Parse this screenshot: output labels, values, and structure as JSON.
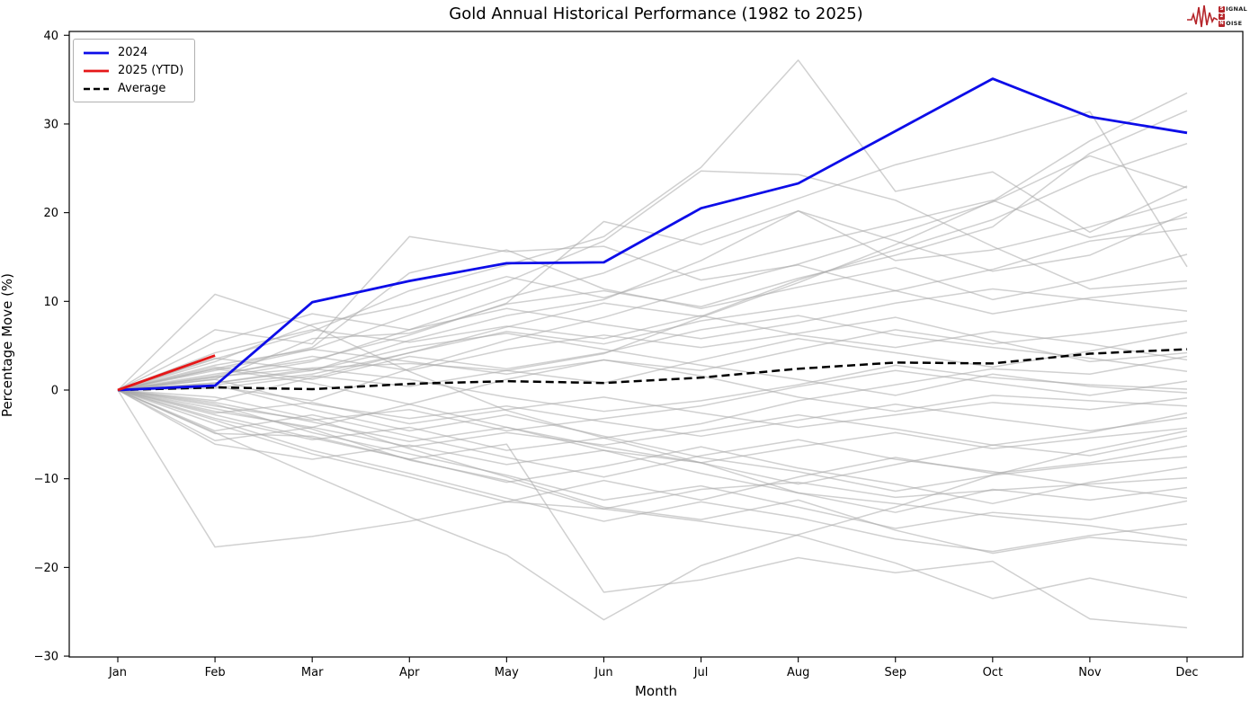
{
  "logo": {
    "name": "Signal 2 Noise",
    "color": "#b5252a",
    "line1_boxed": "S",
    "line1_rest": "IGNAL",
    "line2_boxed": "2",
    "line2_rest": "",
    "line3_boxed": "N",
    "line3_rest": "OISE"
  },
  "chart_data": {
    "type": "line",
    "title": "Gold Annual Historical Performance (1982 to 2025)",
    "xlabel": "Month",
    "ylabel": "Percentage Move (%)",
    "categories": [
      "Jan",
      "Feb",
      "Mar",
      "Apr",
      "May",
      "Jun",
      "Jul",
      "Aug",
      "Sep",
      "Oct",
      "Nov",
      "Dec"
    ],
    "ylim": [
      -30,
      40
    ],
    "yticks": [
      40,
      30,
      20,
      10,
      0,
      -10,
      -20,
      -30
    ],
    "ytick_labels": [
      "40",
      "30",
      "20",
      "10",
      "0",
      "−10",
      "−20",
      "−30"
    ],
    "grid": false,
    "legend_position": "upper left",
    "axis_color": "#000000",
    "series": [
      {
        "name": "2024",
        "color": "#0d0de8",
        "style": "solid",
        "width": 2.8,
        "values": [
          0,
          0.5,
          9.9,
          12.3,
          14.3,
          14.4,
          20.5,
          23.3,
          29.2,
          35.1,
          30.8,
          29.0
        ]
      },
      {
        "name": "2025 (YTD)",
        "color": "#e51718",
        "style": "solid",
        "width": 2.8,
        "values": [
          0,
          3.9
        ]
      },
      {
        "name": "Average",
        "color": "#000000",
        "style": "dashed",
        "width": 2.5,
        "values": [
          0,
          0.3,
          0.1,
          0.7,
          1.0,
          0.8,
          1.4,
          2.4,
          3.1,
          3.0,
          4.1,
          4.6
        ]
      }
    ],
    "background_series": {
      "label": "historical years 1982-2023 (unlabeled gray lines)",
      "color": "#a9a9a9",
      "opacity": 0.55,
      "width": 1.5,
      "values": [
        [
          0,
          3.5,
          6.6,
          11.2,
          14.1,
          17.3,
          25.1,
          37.2,
          22.4,
          24.6,
          17.8,
          23.0
        ],
        [
          0,
          1.5,
          2.5,
          3.0,
          2.2,
          4.1,
          8.2,
          12.1,
          16.4,
          21.3,
          28.1,
          33.5
        ],
        [
          0,
          1.2,
          5.8,
          6.4,
          9.7,
          11.2,
          9.4,
          12.6,
          15.2,
          18.4,
          26.7,
          31.5
        ],
        [
          0,
          -1.2,
          1.4,
          4.2,
          7.1,
          9.8,
          8.3,
          12.4,
          15.8,
          19.2,
          24.1,
          27.8
        ],
        [
          0,
          10.8,
          7.2,
          2.1,
          -2.3,
          -5.4,
          -8.2,
          -11.6,
          -12.8,
          -14.2,
          -15.3,
          -16.9
        ],
        [
          0,
          -17.7,
          -16.5,
          -14.8,
          -12.6,
          -13.4,
          -11.2,
          -10.4,
          -12.1,
          -11.3,
          -10.6,
          -9.9
        ],
        [
          0,
          -4.8,
          -9.6,
          -14.3,
          -18.6,
          -25.9,
          -19.8,
          -16.3,
          -13.2,
          -9.6,
          -6.8,
          -4.6
        ],
        [
          0,
          -4.9,
          -5.2,
          -7.8,
          -6.1,
          -22.8,
          -21.4,
          -18.9,
          -20.6,
          -19.3,
          -25.8,
          -26.8
        ],
        [
          0,
          -2.1,
          -4.4,
          -7.9,
          -10.2,
          -13.4,
          -14.8,
          -16.4,
          -19.5,
          -23.5,
          -21.2,
          -23.4
        ],
        [
          0,
          6.8,
          5.2,
          17.3,
          15.6,
          16.2,
          12.4,
          14.1,
          11.2,
          13.6,
          16.8,
          18.2
        ],
        [
          0,
          2.4,
          4.8,
          13.2,
          15.8,
          11.4,
          9.2,
          11.6,
          13.8,
          10.2,
          12.4,
          15.3
        ],
        [
          0,
          2.2,
          4.6,
          8.4,
          12.2,
          16.8,
          24.7,
          24.3,
          21.4,
          16.2,
          11.4,
          12.3
        ],
        [
          0,
          1.8,
          3.4,
          6.2,
          9.8,
          19.0,
          16.4,
          20.2,
          14.6,
          15.8,
          18.4,
          21.5
        ],
        [
          0,
          0.8,
          2.2,
          5.6,
          8.4,
          10.2,
          14.6,
          20.2,
          16.8,
          13.4,
          15.2,
          20.0
        ],
        [
          0,
          1.4,
          3.2,
          6.8,
          10.4,
          13.2,
          17.8,
          21.6,
          25.4,
          28.2,
          31.4,
          13.9
        ],
        [
          0,
          0.6,
          1.8,
          4.2,
          6.6,
          5.2,
          7.8,
          9.4,
          11.2,
          8.6,
          10.4,
          11.5
        ],
        [
          0,
          0.4,
          -1.2,
          2.4,
          5.6,
          8.2,
          11.4,
          14.2,
          17.6,
          21.2,
          26.4,
          22.8
        ],
        [
          0,
          3.2,
          7.4,
          9.6,
          12.8,
          10.4,
          13.6,
          16.2,
          18.8,
          21.4,
          17.2,
          19.5
        ],
        [
          0,
          -2.4,
          -4.2,
          -1.6,
          1.2,
          3.4,
          2.2,
          4.6,
          6.8,
          5.2,
          6.4,
          7.8
        ],
        [
          0,
          1.6,
          3.8,
          2.2,
          4.6,
          6.2,
          4.8,
          6.4,
          8.2,
          5.6,
          3.2,
          4.2
        ],
        [
          0,
          -3.2,
          -5.6,
          -4.2,
          -6.8,
          -5.4,
          -3.8,
          -1.2,
          0.6,
          2.4,
          1.8,
          3.8
        ],
        [
          0,
          4.2,
          6.8,
          5.4,
          7.2,
          5.8,
          8.4,
          6.2,
          4.8,
          6.6,
          5.2,
          3.4
        ],
        [
          0,
          2.6,
          1.2,
          3.8,
          2.4,
          4.2,
          6.8,
          8.4,
          6.2,
          4.8,
          3.6,
          2.1
        ],
        [
          0,
          -1.8,
          -3.4,
          -2.2,
          -4.6,
          -3.2,
          -1.8,
          0.4,
          2.2,
          0.8,
          -0.6,
          1.0
        ],
        [
          0,
          0.8,
          2.4,
          1.2,
          -0.8,
          -2.4,
          -1.2,
          0.6,
          2.8,
          1.4,
          0.6,
          0.1
        ],
        [
          0,
          -2.6,
          -1.4,
          -3.8,
          -2.2,
          -0.8,
          -2.6,
          -4.2,
          -2.8,
          -1.4,
          -2.2,
          -0.9
        ],
        [
          0,
          2.8,
          4.6,
          3.2,
          1.8,
          3.4,
          1.6,
          -0.8,
          -2.4,
          -0.6,
          -1.2,
          -1.8
        ],
        [
          0,
          -5.7,
          -4.2,
          -6.4,
          -4.8,
          -6.2,
          -4.6,
          -2.8,
          -4.4,
          -6.2,
          -4.8,
          -2.6
        ],
        [
          0,
          1.2,
          -1.6,
          -3.2,
          -1.8,
          -3.6,
          -5.2,
          -3.4,
          -1.6,
          -3.2,
          -4.6,
          -3.1
        ],
        [
          0,
          -6.1,
          -7.8,
          -6.2,
          -8.4,
          -6.8,
          -8.2,
          -6.4,
          -4.8,
          -6.6,
          -5.4,
          -4.3
        ],
        [
          0,
          -1.4,
          -3.6,
          -5.8,
          -4.2,
          -6.4,
          -8.2,
          -10.6,
          -8.4,
          -6.2,
          -7.4,
          -5.2
        ],
        [
          0,
          -3.8,
          -7.2,
          -9.8,
          -12.6,
          -10.2,
          -12.4,
          -9.8,
          -7.6,
          -9.4,
          -8.2,
          -6.3
        ],
        [
          0,
          0.6,
          -2.2,
          -4.6,
          -2.8,
          -5.2,
          -7.6,
          -9.2,
          -11.4,
          -9.6,
          -8.4,
          -7.5
        ],
        [
          0,
          -2.8,
          -5.4,
          -7.8,
          -10.4,
          -8.6,
          -6.4,
          -8.8,
          -10.6,
          -12.8,
          -10.4,
          -8.7
        ],
        [
          0,
          2.4,
          0.8,
          -1.6,
          -4.2,
          -6.8,
          -9.4,
          -11.6,
          -13.8,
          -11.2,
          -12.4,
          -11.0
        ],
        [
          0,
          -1.6,
          -4.8,
          -7.2,
          -9.6,
          -12.4,
          -10.8,
          -13.2,
          -15.6,
          -13.8,
          -14.6,
          -12.5
        ],
        [
          0,
          -3.4,
          -6.8,
          -9.4,
          -12.2,
          -14.8,
          -12.6,
          -14.4,
          -16.8,
          -18.2,
          -16.4,
          -15.1
        ],
        [
          0,
          -0.8,
          -3.2,
          -6.6,
          -9.8,
          -13.2,
          -14.6,
          -12.4,
          -15.8,
          -18.4,
          -16.6,
          -17.5
        ],
        [
          0,
          5.4,
          8.6,
          6.8,
          9.2,
          7.4,
          5.8,
          7.6,
          9.8,
          11.4,
          10.2,
          8.9
        ],
        [
          0,
          3.6,
          2.2,
          4.8,
          6.4,
          4.6,
          2.8,
          1.2,
          -0.6,
          1.8,
          0.4,
          -0.3
        ],
        [
          0,
          -4.6,
          -2.8,
          -5.2,
          -7.6,
          -9.8,
          -7.4,
          -5.6,
          -7.8,
          -9.2,
          -10.8,
          -12.2
        ],
        [
          0,
          0.2,
          1.6,
          0.4,
          2.2,
          0.8,
          3.4,
          5.8,
          4.2,
          2.6,
          4.4,
          6.5
        ]
      ]
    }
  }
}
